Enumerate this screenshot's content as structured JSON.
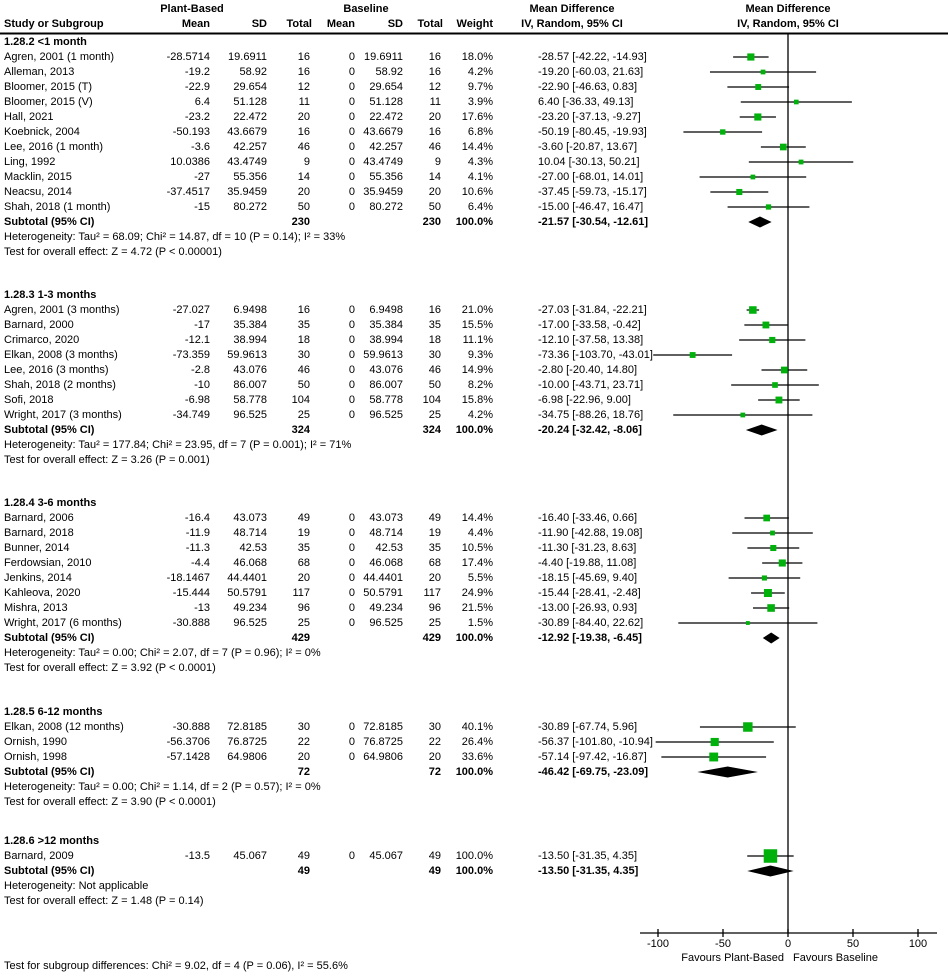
{
  "header": {
    "study_col": "Study or Subgroup",
    "plant_group": "Plant-Based",
    "baseline_group": "Baseline",
    "mean": "Mean",
    "sd": "SD",
    "total": "Total",
    "weight": "Weight",
    "md_title": "Mean Difference",
    "md_method": "IV, Random, 95% CI"
  },
  "footer": {
    "favours_left": "Favours Plant-Based",
    "favours_right": "Favours Baseline",
    "subgroup_test": "Test for subgroup differences: Chi² = 9.02, df = 4 (P = 0.06), I² = 55.6%"
  },
  "colors": {
    "square": "#00b10c",
    "diamond": "#000000",
    "line": "#000000"
  },
  "chart_data": {
    "type": "forest",
    "effect_measure": "Mean Difference",
    "model": "IV, Random, 95% CI",
    "axis": {
      "tick_values": [
        -100,
        -50,
        0,
        50,
        100
      ],
      "tick_labels": [
        "-100",
        "-50",
        "0",
        "50",
        "100"
      ],
      "min": -113,
      "max": 114
    },
    "sections": [
      {
        "label": "1.28.2 <1 month",
        "studies": [
          {
            "name": "Agren, 2001 (1 month)",
            "mean1": "-28.5714",
            "sd1": "19.6911",
            "n1": "16",
            "mean2": "0",
            "sd2": "19.6911",
            "n2": "16",
            "weight": "18.0%",
            "ci": "-28.57 [-42.22, -14.93]",
            "est": -28.57,
            "lo": -42.22,
            "hi": -14.93
          },
          {
            "name": "Alleman, 2013",
            "mean1": "-19.2",
            "sd1": "58.92",
            "n1": "16",
            "mean2": "0",
            "sd2": "58.92",
            "n2": "16",
            "weight": "4.2%",
            "ci": "-19.20 [-60.03, 21.63]",
            "est": -19.2,
            "lo": -60.03,
            "hi": 21.63
          },
          {
            "name": "Bloomer, 2015 (T)",
            "mean1": "-22.9",
            "sd1": "29.654",
            "n1": "12",
            "mean2": "0",
            "sd2": "29.654",
            "n2": "12",
            "weight": "9.7%",
            "ci": "-22.90 [-46.63, 0.83]",
            "est": -22.9,
            "lo": -46.63,
            "hi": 0.83
          },
          {
            "name": "Bloomer, 2015 (V)",
            "mean1": "6.4",
            "sd1": "51.128",
            "n1": "11",
            "mean2": "0",
            "sd2": "51.128",
            "n2": "11",
            "weight": "3.9%",
            "ci": "6.40 [-36.33, 49.13]",
            "est": 6.4,
            "lo": -36.33,
            "hi": 49.13
          },
          {
            "name": "Hall, 2021",
            "mean1": "-23.2",
            "sd1": "22.472",
            "n1": "20",
            "mean2": "0",
            "sd2": "22.472",
            "n2": "20",
            "weight": "17.6%",
            "ci": "-23.20 [-37.13, -9.27]",
            "est": -23.2,
            "lo": -37.13,
            "hi": -9.27
          },
          {
            "name": "Koebnick, 2004",
            "mean1": "-50.193",
            "sd1": "43.6679",
            "n1": "16",
            "mean2": "0",
            "sd2": "43.6679",
            "n2": "16",
            "weight": "6.8%",
            "ci": "-50.19 [-80.45, -19.93]",
            "est": -50.19,
            "lo": -80.45,
            "hi": -19.93
          },
          {
            "name": "Lee, 2016 (1 month)",
            "mean1": "-3.6",
            "sd1": "42.257",
            "n1": "46",
            "mean2": "0",
            "sd2": "42.257",
            "n2": "46",
            "weight": "14.4%",
            "ci": "-3.60 [-20.87, 13.67]",
            "est": -3.6,
            "lo": -20.87,
            "hi": 13.67
          },
          {
            "name": "Ling, 1992",
            "mean1": "10.0386",
            "sd1": "43.4749",
            "n1": "9",
            "mean2": "0",
            "sd2": "43.4749",
            "n2": "9",
            "weight": "4.3%",
            "ci": "10.04 [-30.13, 50.21]",
            "est": 10.04,
            "lo": -30.13,
            "hi": 50.21
          },
          {
            "name": "Macklin, 2015",
            "mean1": "-27",
            "sd1": "55.356",
            "n1": "14",
            "mean2": "0",
            "sd2": "55.356",
            "n2": "14",
            "weight": "4.1%",
            "ci": "-27.00 [-68.01, 14.01]",
            "est": -27.0,
            "lo": -68.01,
            "hi": 14.01
          },
          {
            "name": "Neacsu, 2014",
            "mean1": "-37.4517",
            "sd1": "35.9459",
            "n1": "20",
            "mean2": "0",
            "sd2": "35.9459",
            "n2": "20",
            "weight": "10.6%",
            "ci": "-37.45 [-59.73, -15.17]",
            "est": -37.45,
            "lo": -59.73,
            "hi": -15.17
          },
          {
            "name": "Shah, 2018 (1 month)",
            "mean1": "-15",
            "sd1": "80.272",
            "n1": "50",
            "mean2": "0",
            "sd2": "80.272",
            "n2": "50",
            "weight": "6.4%",
            "ci": "-15.00 [-46.47, 16.47]",
            "est": -15.0,
            "lo": -46.47,
            "hi": 16.47
          }
        ],
        "subtotal": {
          "label": "Subtotal (95% CI)",
          "n1": "230",
          "n2": "230",
          "weight": "100.0%",
          "ci": "-21.57 [-30.54, -12.61]",
          "est": -21.57,
          "lo": -30.54,
          "hi": -12.61
        },
        "heterogeneity": "Heterogeneity: Tau² = 68.09; Chi² = 14.87, df = 10 (P = 0.14); I² = 33%",
        "overall_test": "Test for overall effect: Z = 4.72 (P < 0.00001)"
      },
      {
        "label": "1.28.3 1-3 months",
        "studies": [
          {
            "name": "Agren, 2001 (3 months)",
            "mean1": "-27.027",
            "sd1": "6.9498",
            "n1": "16",
            "mean2": "0",
            "sd2": "6.9498",
            "n2": "16",
            "weight": "21.0%",
            "ci": "-27.03 [-31.84, -22.21]",
            "est": -27.03,
            "lo": -31.84,
            "hi": -22.21
          },
          {
            "name": "Barnard, 2000",
            "mean1": "-17",
            "sd1": "35.384",
            "n1": "35",
            "mean2": "0",
            "sd2": "35.384",
            "n2": "35",
            "weight": "15.5%",
            "ci": "-17.00 [-33.58, -0.42]",
            "est": -17.0,
            "lo": -33.58,
            "hi": -0.42
          },
          {
            "name": "Crimarco, 2020",
            "mean1": "-12.1",
            "sd1": "38.994",
            "n1": "18",
            "mean2": "0",
            "sd2": "38.994",
            "n2": "18",
            "weight": "11.1%",
            "ci": "-12.10 [-37.58, 13.38]",
            "est": -12.1,
            "lo": -37.58,
            "hi": 13.38
          },
          {
            "name": "Elkan, 2008 (3 months)",
            "mean1": "-73.359",
            "sd1": "59.9613",
            "n1": "30",
            "mean2": "0",
            "sd2": "59.9613",
            "n2": "30",
            "weight": "9.3%",
            "ci": "-73.36 [-103.70, -43.01]",
            "est": -73.36,
            "lo": -103.7,
            "hi": -43.01
          },
          {
            "name": "Lee, 2016 (3 months)",
            "mean1": "-2.8",
            "sd1": "43.076",
            "n1": "46",
            "mean2": "0",
            "sd2": "43.076",
            "n2": "46",
            "weight": "14.9%",
            "ci": "-2.80 [-20.40, 14.80]",
            "est": -2.8,
            "lo": -20.4,
            "hi": 14.8
          },
          {
            "name": "Shah, 2018 (2 months)",
            "mean1": "-10",
            "sd1": "86.007",
            "n1": "50",
            "mean2": "0",
            "sd2": "86.007",
            "n2": "50",
            "weight": "8.2%",
            "ci": "-10.00 [-43.71, 23.71]",
            "est": -10.0,
            "lo": -43.71,
            "hi": 23.71
          },
          {
            "name": "Sofi, 2018",
            "mean1": "-6.98",
            "sd1": "58.778",
            "n1": "104",
            "mean2": "0",
            "sd2": "58.778",
            "n2": "104",
            "weight": "15.8%",
            "ci": "-6.98 [-22.96, 9.00]",
            "est": -6.98,
            "lo": -22.96,
            "hi": 9.0
          },
          {
            "name": "Wright, 2017 (3 months)",
            "mean1": "-34.749",
            "sd1": "96.525",
            "n1": "25",
            "mean2": "0",
            "sd2": "96.525",
            "n2": "25",
            "weight": "4.2%",
            "ci": "-34.75 [-88.26, 18.76]",
            "est": -34.75,
            "lo": -88.26,
            "hi": 18.76
          }
        ],
        "subtotal": {
          "label": "Subtotal (95% CI)",
          "n1": "324",
          "n2": "324",
          "weight": "100.0%",
          "ci": "-20.24 [-32.42, -8.06]",
          "est": -20.24,
          "lo": -32.42,
          "hi": -8.06
        },
        "heterogeneity": "Heterogeneity: Tau² = 177.84; Chi² = 23.95, df = 7 (P = 0.001); I² = 71%",
        "overall_test": "Test for overall effect: Z = 3.26 (P = 0.001)"
      },
      {
        "label": "1.28.4 3-6 months",
        "studies": [
          {
            "name": "Barnard, 2006",
            "mean1": "-16.4",
            "sd1": "43.073",
            "n1": "49",
            "mean2": "0",
            "sd2": "43.073",
            "n2": "49",
            "weight": "14.4%",
            "ci": "-16.40 [-33.46, 0.66]",
            "est": -16.4,
            "lo": -33.46,
            "hi": 0.66
          },
          {
            "name": "Barnard, 2018",
            "mean1": "-11.9",
            "sd1": "48.714",
            "n1": "19",
            "mean2": "0",
            "sd2": "48.714",
            "n2": "19",
            "weight": "4.4%",
            "ci": "-11.90 [-42.88, 19.08]",
            "est": -11.9,
            "lo": -42.88,
            "hi": 19.08
          },
          {
            "name": "Bunner, 2014",
            "mean1": "-11.3",
            "sd1": "42.53",
            "n1": "35",
            "mean2": "0",
            "sd2": "42.53",
            "n2": "35",
            "weight": "10.5%",
            "ci": "-11.30 [-31.23, 8.63]",
            "est": -11.3,
            "lo": -31.23,
            "hi": 8.63
          },
          {
            "name": "Ferdowsian, 2010",
            "mean1": "-4.4",
            "sd1": "46.068",
            "n1": "68",
            "mean2": "0",
            "sd2": "46.068",
            "n2": "68",
            "weight": "17.4%",
            "ci": "-4.40 [-19.88, 11.08]",
            "est": -4.4,
            "lo": -19.88,
            "hi": 11.08
          },
          {
            "name": "Jenkins, 2014",
            "mean1": "-18.1467",
            "sd1": "44.4401",
            "n1": "20",
            "mean2": "0",
            "sd2": "44.4401",
            "n2": "20",
            "weight": "5.5%",
            "ci": "-18.15 [-45.69, 9.40]",
            "est": -18.15,
            "lo": -45.69,
            "hi": 9.4
          },
          {
            "name": "Kahleova, 2020",
            "mean1": "-15.444",
            "sd1": "50.5791",
            "n1": "117",
            "mean2": "0",
            "sd2": "50.5791",
            "n2": "117",
            "weight": "24.9%",
            "ci": "-15.44 [-28.41, -2.48]",
            "est": -15.44,
            "lo": -28.41,
            "hi": -2.48
          },
          {
            "name": "Mishra, 2013",
            "mean1": "-13",
            "sd1": "49.234",
            "n1": "96",
            "mean2": "0",
            "sd2": "49.234",
            "n2": "96",
            "weight": "21.5%",
            "ci": "-13.00 [-26.93, 0.93]",
            "est": -13.0,
            "lo": -26.93,
            "hi": 0.93
          },
          {
            "name": "Wright, 2017 (6 months)",
            "mean1": "-30.888",
            "sd1": "96.525",
            "n1": "25",
            "mean2": "0",
            "sd2": "96.525",
            "n2": "25",
            "weight": "1.5%",
            "ci": "-30.89 [-84.40, 22.62]",
            "est": -30.89,
            "lo": -84.4,
            "hi": 22.62
          }
        ],
        "subtotal": {
          "label": "Subtotal (95% CI)",
          "n1": "429",
          "n2": "429",
          "weight": "100.0%",
          "ci": "-12.92 [-19.38, -6.45]",
          "est": -12.92,
          "lo": -19.38,
          "hi": -6.45
        },
        "heterogeneity": "Heterogeneity: Tau² = 0.00; Chi² = 2.07, df = 7 (P = 0.96); I² = 0%",
        "overall_test": "Test for overall effect: Z = 3.92 (P < 0.0001)"
      },
      {
        "label": "1.28.5 6-12 months",
        "studies": [
          {
            "name": "Elkan, 2008 (12 months)",
            "mean1": "-30.888",
            "sd1": "72.8185",
            "n1": "30",
            "mean2": "0",
            "sd2": "72.8185",
            "n2": "30",
            "weight": "40.1%",
            "ci": "-30.89 [-67.74, 5.96]",
            "est": -30.89,
            "lo": -67.74,
            "hi": 5.96
          },
          {
            "name": "Ornish, 1990",
            "mean1": "-56.3706",
            "sd1": "76.8725",
            "n1": "22",
            "mean2": "0",
            "sd2": "76.8725",
            "n2": "22",
            "weight": "26.4%",
            "ci": "-56.37 [-101.80, -10.94]",
            "est": -56.37,
            "lo": -101.8,
            "hi": -10.94
          },
          {
            "name": "Ornish, 1998",
            "mean1": "-57.1428",
            "sd1": "64.9806",
            "n1": "20",
            "mean2": "0",
            "sd2": "64.9806",
            "n2": "20",
            "weight": "33.6%",
            "ci": "-57.14 [-97.42, -16.87]",
            "est": -57.14,
            "lo": -97.42,
            "hi": -16.87
          }
        ],
        "subtotal": {
          "label": "Subtotal (95% CI)",
          "n1": "72",
          "n2": "72",
          "weight": "100.0%",
          "ci": "-46.42 [-69.75, -23.09]",
          "est": -46.42,
          "lo": -69.75,
          "hi": -23.09
        },
        "heterogeneity": "Heterogeneity: Tau² = 0.00; Chi² = 1.14, df = 2 (P = 0.57); I² = 0%",
        "overall_test": "Test for overall effect: Z = 3.90 (P < 0.0001)"
      },
      {
        "label": "1.28.6 >12 months",
        "studies": [
          {
            "name": "Barnard, 2009",
            "mean1": "-13.5",
            "sd1": "45.067",
            "n1": "49",
            "mean2": "0",
            "sd2": "45.067",
            "n2": "49",
            "weight": "100.0%",
            "ci": "-13.50 [-31.35, 4.35]",
            "est": -13.5,
            "lo": -31.35,
            "hi": 4.35
          }
        ],
        "subtotal": {
          "label": "Subtotal (95% CI)",
          "n1": "49",
          "n2": "49",
          "weight": "100.0%",
          "ci": "-13.50 [-31.35, 4.35]",
          "est": -13.5,
          "lo": -31.35,
          "hi": 4.35
        },
        "heterogeneity": "Heterogeneity: Not applicable",
        "overall_test": "Test for overall effect: Z = 1.48 (P = 0.14)"
      }
    ]
  }
}
